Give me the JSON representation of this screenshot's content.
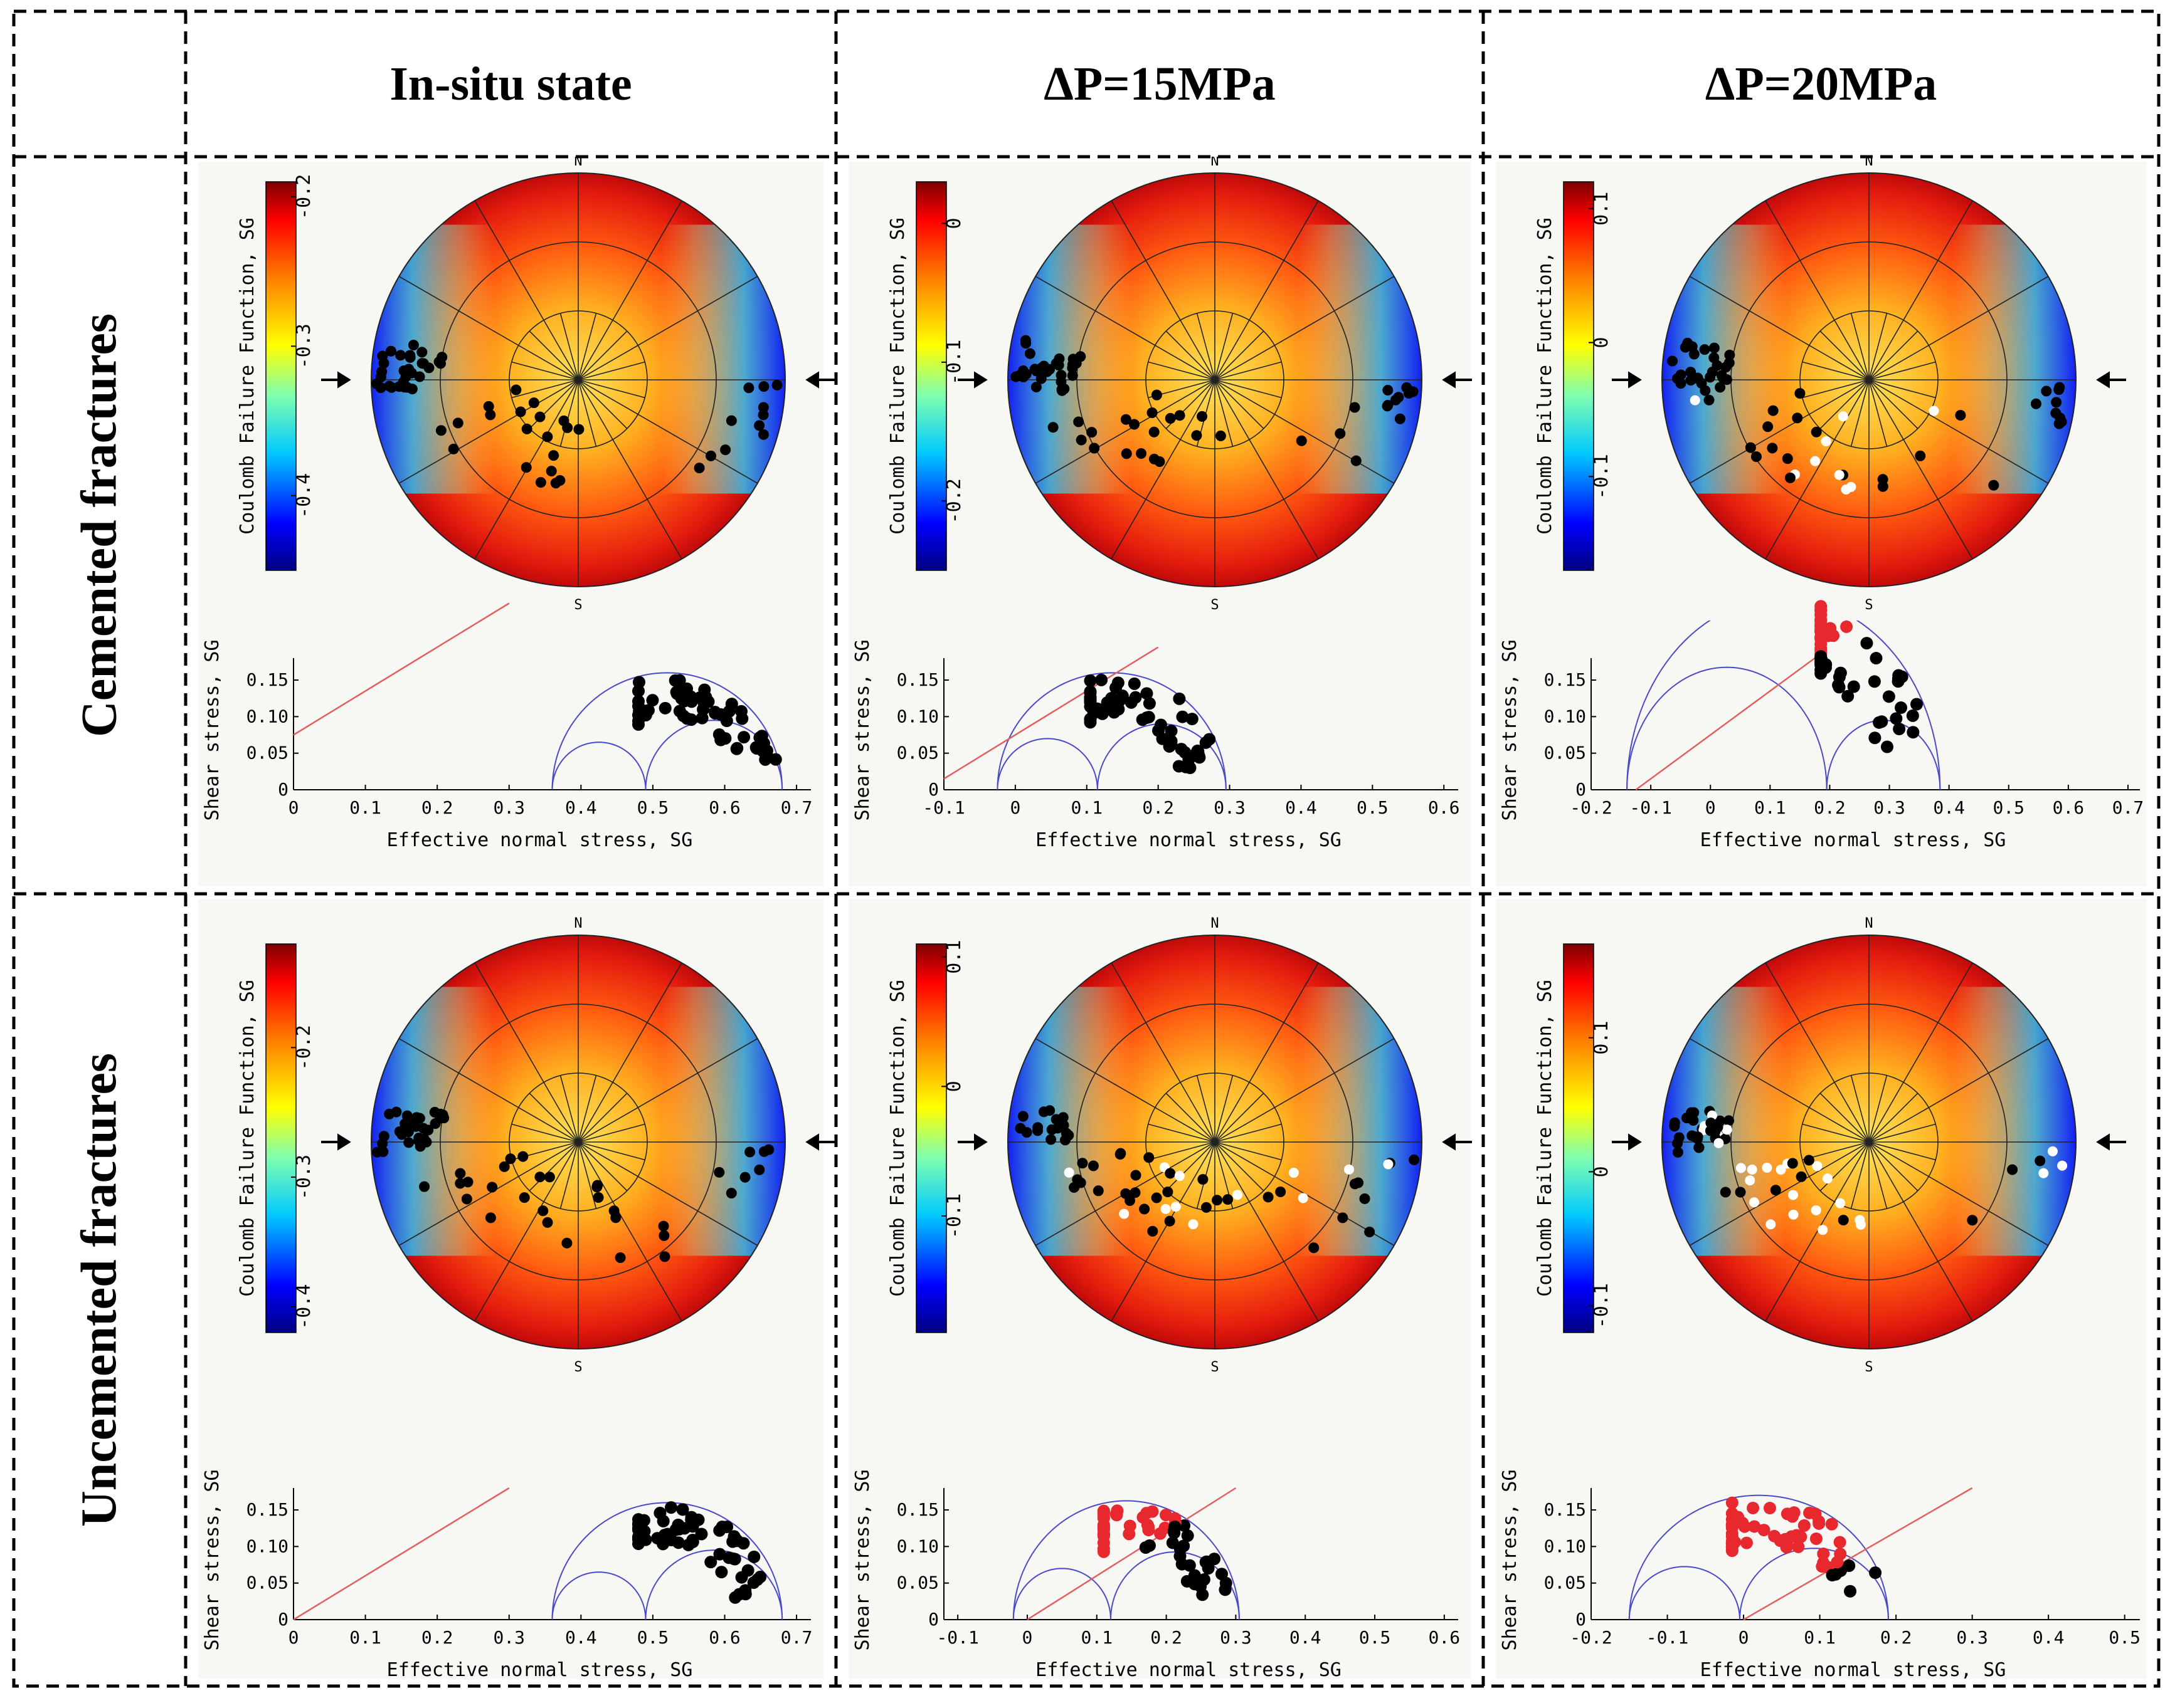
{
  "headers": {
    "col1": "In-situ state",
    "col2": "ΔP=15MPa",
    "col3": "ΔP=20MPa",
    "row1": "Cemented fractures",
    "row2": "Uncemented fractures"
  },
  "common": {
    "north": "N",
    "south": "S",
    "colorbar_label": "Coulomb Failure Function,   SG",
    "mohr_ylabel": "Shear stress, SG",
    "mohr_xlabel": "Effective normal stress,   SG",
    "failure_line_color": "#e06060",
    "circle_color": "#4a4ac8",
    "point_black": "#000000",
    "point_red": "#e8282f",
    "point_white": "#ffffff"
  },
  "chart_data": [
    {
      "type": "stereonet+mohr",
      "id": "cemented-insitu",
      "colorbar": {
        "min": -0.45,
        "max": -0.19,
        "ticks": [
          -0.4,
          -0.3,
          -0.2
        ],
        "tick_labels": [
          "-0.4",
          "-0.3",
          "-0.2"
        ]
      },
      "mohr": {
        "xlim": [
          0,
          0.72
        ],
        "xticks": [
          0,
          0.1,
          0.2,
          0.3,
          0.4,
          0.5,
          0.6,
          0.7
        ],
        "xtick_labels": [
          "0",
          "0.1",
          "0.2",
          "0.3",
          "0.4",
          "0.5",
          "0.6",
          "0.7"
        ],
        "ylim": [
          0,
          0.18
        ],
        "yticks": [
          0,
          0.05,
          0.1,
          0.15
        ],
        "ytick_labels": [
          "0",
          "0.05",
          "0.10",
          "0.15"
        ],
        "s1": 0.68,
        "s2": 0.49,
        "s3": 0.36,
        "line": {
          "c": 0.075,
          "mu": 0.6
        }
      }
    },
    {
      "type": "stereonet+mohr",
      "id": "cemented-15mpa",
      "colorbar": {
        "min": -0.25,
        "max": 0.03,
        "ticks": [
          -0.2,
          -0.1,
          0
        ],
        "tick_labels": [
          "-0.2",
          "-0.1",
          "0"
        ]
      },
      "mohr": {
        "xlim": [
          -0.1,
          0.62
        ],
        "xticks": [
          -0.1,
          0,
          0.1,
          0.2,
          0.3,
          0.4,
          0.5,
          0.6
        ],
        "xtick_labels": [
          "-0.1",
          "0",
          "0.1",
          "0.2",
          "0.3",
          "0.4",
          "0.5",
          "0.6"
        ],
        "ylim": [
          0,
          0.18
        ],
        "yticks": [
          0,
          0.05,
          0.1,
          0.15
        ],
        "ytick_labels": [
          "0",
          "0.05",
          "0.10",
          "0.15"
        ],
        "s1": 0.295,
        "s2": 0.115,
        "s3": -0.025,
        "line": {
          "c": 0.075,
          "mu": 0.6
        }
      }
    },
    {
      "type": "stereonet+mohr",
      "id": "cemented-20mpa",
      "colorbar": {
        "min": -0.17,
        "max": 0.12,
        "ticks": [
          -0.1,
          0,
          0.1
        ],
        "tick_labels": [
          "-0.1",
          "0",
          "0.1"
        ]
      },
      "mohr": {
        "xlim": [
          -0.2,
          0.72
        ],
        "xticks": [
          -0.2,
          -0.1,
          0,
          0.1,
          0.2,
          0.3,
          0.4,
          0.5,
          0.6,
          0.7
        ],
        "xtick_labels": [
          "-0.2",
          "-0.1",
          "0",
          "0.1",
          "0.2",
          "0.3",
          "0.4",
          "0.5",
          "0.6",
          "0.7"
        ],
        "ylim": [
          0,
          0.18
        ],
        "yticks": [
          0,
          0.05,
          0.1,
          0.15
        ],
        "ytick_labels": [
          "0",
          "0.05",
          "0.10",
          "0.15"
        ],
        "s1": 0.385,
        "s2": 0.195,
        "s3": -0.14,
        "line": {
          "c": 0.075,
          "mu": 0.6
        }
      }
    },
    {
      "type": "stereonet+mohr",
      "id": "uncemented-insitu",
      "colorbar": {
        "min": -0.42,
        "max": -0.12,
        "ticks": [
          -0.4,
          -0.3,
          -0.2
        ],
        "tick_labels": [
          "-0.4",
          "-0.3",
          "-0.2"
        ]
      },
      "mohr": {
        "xlim": [
          0,
          0.72
        ],
        "xticks": [
          0,
          0.1,
          0.2,
          0.3,
          0.4,
          0.5,
          0.6,
          0.7
        ],
        "xtick_labels": [
          "0",
          "0.1",
          "0.2",
          "0.3",
          "0.4",
          "0.5",
          "0.6",
          "0.7"
        ],
        "ylim": [
          0,
          0.18
        ],
        "yticks": [
          0,
          0.05,
          0.1,
          0.15
        ],
        "ytick_labels": [
          "0",
          "0.05",
          "0.10",
          "0.15"
        ],
        "s1": 0.68,
        "s2": 0.49,
        "s3": 0.36,
        "line": {
          "c": 0,
          "mu": 0.6
        }
      }
    },
    {
      "type": "stereonet+mohr",
      "id": "uncemented-15mpa",
      "colorbar": {
        "min": -0.19,
        "max": 0.11,
        "ticks": [
          -0.1,
          0,
          0.1
        ],
        "tick_labels": [
          "-0.1",
          "0",
          "0.1"
        ]
      },
      "mohr": {
        "xlim": [
          -0.12,
          0.62
        ],
        "xticks": [
          -0.1,
          0,
          0.1,
          0.2,
          0.3,
          0.4,
          0.5,
          0.6
        ],
        "xtick_labels": [
          "-0.1",
          "0",
          "0.1",
          "0.2",
          "0.3",
          "0.4",
          "0.5",
          "0.6"
        ],
        "ylim": [
          0,
          0.18
        ],
        "yticks": [
          0,
          0.05,
          0.1,
          0.15
        ],
        "ytick_labels": [
          "0",
          "0.05",
          "0.10",
          "0.15"
        ],
        "s1": 0.305,
        "s2": 0.12,
        "s3": -0.02,
        "line": {
          "c": 0,
          "mu": 0.6
        }
      }
    },
    {
      "type": "stereonet+mohr",
      "id": "uncemented-20mpa",
      "colorbar": {
        "min": -0.12,
        "max": 0.17,
        "ticks": [
          -0.1,
          0,
          0.1
        ],
        "tick_labels": [
          "-0.1",
          "0",
          "0.1"
        ]
      },
      "mohr": {
        "xlim": [
          -0.2,
          0.52
        ],
        "xticks": [
          -0.2,
          -0.1,
          0,
          0.1,
          0.2,
          0.3,
          0.4,
          0.5
        ],
        "xtick_labels": [
          "-0.2",
          "-0.1",
          "0",
          "0.1",
          "0.2",
          "0.3",
          "0.4",
          "0.5"
        ],
        "ylim": [
          0,
          0.18
        ],
        "yticks": [
          0,
          0.05,
          0.1,
          0.15
        ],
        "ytick_labels": [
          "0",
          "0.05",
          "0.10",
          "0.15"
        ],
        "s1": 0.19,
        "s2": -0.005,
        "s3": -0.15,
        "line": {
          "c": 0,
          "mu": 0.6
        }
      }
    }
  ]
}
